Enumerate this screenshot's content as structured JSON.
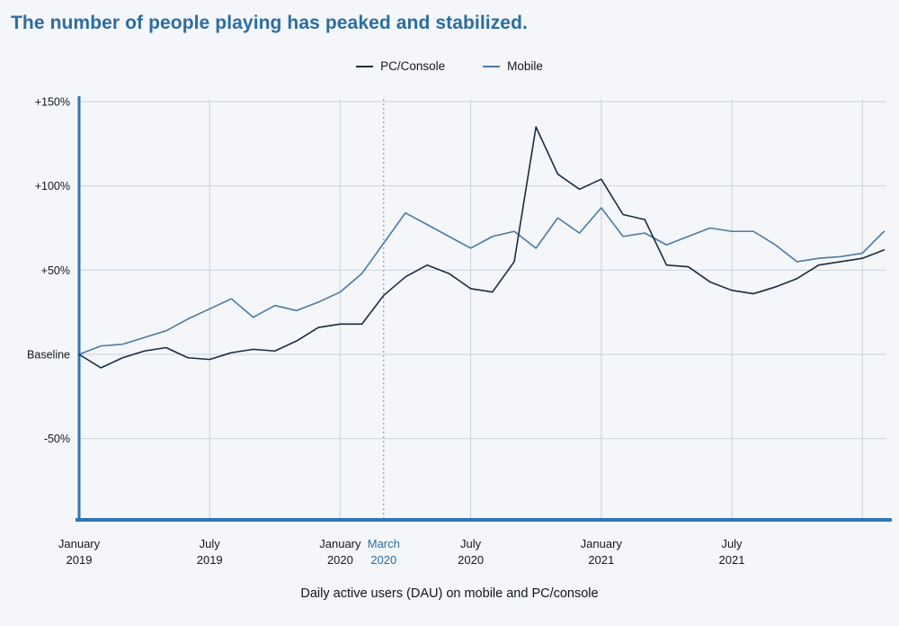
{
  "chart_data": {
    "type": "line",
    "title": "The number of people playing has peaked and stabilized.",
    "caption": "Daily active users (DAU) on mobile and PC/console",
    "x_unit": "month",
    "x_start_label": "January 2019",
    "n_points": 38,
    "ylim": [
      -50,
      150
    ],
    "grid": true,
    "legend_position": "top-center",
    "y_ticks": [
      {
        "label": "+150%",
        "value": 150
      },
      {
        "label": "+100%",
        "value": 100
      },
      {
        "label": "+50%",
        "value": 50
      },
      {
        "label": "Baseline",
        "value": 0
      },
      {
        "label": "-50%",
        "value": -50
      }
    ],
    "x_tick_labels": [
      {
        "top": "January",
        "bottom": "2019",
        "index": 0,
        "highlight": false
      },
      {
        "top": "July",
        "bottom": "2019",
        "index": 6,
        "highlight": false
      },
      {
        "top": "January",
        "bottom": "2020",
        "index": 12,
        "highlight": false
      },
      {
        "top": "March",
        "bottom": "2020",
        "index": 14,
        "highlight": true
      },
      {
        "top": "July",
        "bottom": "2020",
        "index": 18,
        "highlight": false
      },
      {
        "top": "January",
        "bottom": "2021",
        "index": 24,
        "highlight": false
      },
      {
        "top": "July",
        "bottom": "2021",
        "index": 30,
        "highlight": false
      }
    ],
    "vertical_gridline_indices": [
      6,
      12,
      18,
      24,
      30,
      36
    ],
    "annotation_line": {
      "label": "March 2020",
      "index": 14,
      "style": "dotted"
    },
    "series": [
      {
        "name": "PC/Console",
        "color": "#1b2b40",
        "values": [
          0,
          -8,
          -2,
          2,
          4,
          -2,
          -3,
          1,
          3,
          2,
          8,
          16,
          18,
          18,
          35,
          46,
          53,
          48,
          39,
          37,
          55,
          135,
          107,
          98,
          104,
          83,
          80,
          53,
          52,
          43,
          38,
          36,
          40,
          45,
          53,
          55,
          57,
          62
        ]
      },
      {
        "name": "Mobile",
        "color": "#4c79a4",
        "values": [
          0,
          5,
          6,
          10,
          14,
          21,
          27,
          33,
          22,
          29,
          26,
          31,
          37,
          48,
          66,
          84,
          77,
          70,
          63,
          70,
          73,
          63,
          81,
          72,
          87,
          70,
          72,
          65,
          70,
          75,
          73,
          73,
          65,
          55,
          57,
          58,
          60,
          73
        ]
      }
    ],
    "grid_color": "#c9d2dc",
    "axis_color": "#2e76b6",
    "highlight_color": "#2c6da0",
    "annotation_color": "#7d8691",
    "text_color": "#14181d"
  }
}
